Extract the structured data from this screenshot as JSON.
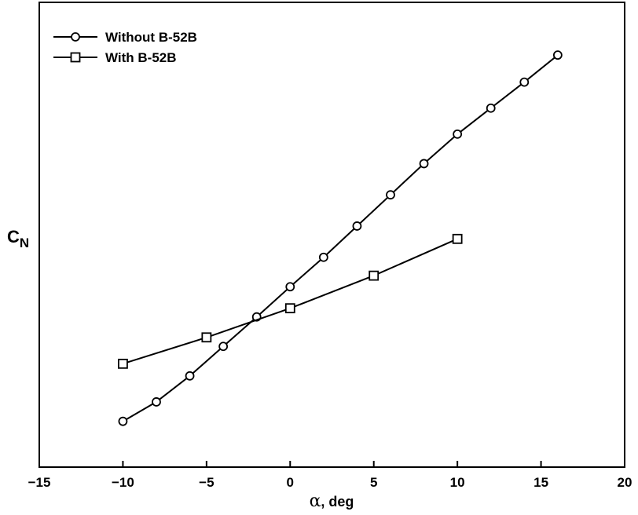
{
  "chart_data": {
    "type": "line",
    "xlabel_symbol": "α",
    "xlabel_rest": ", deg",
    "ylabel_main": "C",
    "ylabel_sub": "N",
    "xlim": [
      -15,
      20
    ],
    "ylim": [
      -0.52,
      0.82
    ],
    "x_ticks": [
      -15,
      -10,
      -5,
      0,
      5,
      10,
      15,
      20
    ],
    "x_tick_labels": [
      "−15",
      "−10",
      "−5",
      "0",
      "5",
      "10",
      "15",
      "20"
    ],
    "y_ticks_shown": false,
    "grid": false,
    "legend_position": "top-left",
    "series": [
      {
        "name": "Without B-52B",
        "marker": "circle",
        "x": [
          -10,
          -8,
          -6,
          -4,
          -2,
          0,
          2,
          4,
          6,
          8,
          10,
          12,
          14,
          16
        ],
        "y": [
          -0.388,
          -0.332,
          -0.257,
          -0.172,
          -0.087,
          0.0,
          0.085,
          0.175,
          0.265,
          0.355,
          0.44,
          0.515,
          0.59,
          0.668
        ]
      },
      {
        "name": "With B-52B",
        "marker": "square",
        "x": [
          -10,
          -5,
          0,
          5,
          10
        ],
        "y": [
          -0.222,
          -0.146,
          -0.062,
          0.032,
          0.138
        ]
      }
    ]
  }
}
